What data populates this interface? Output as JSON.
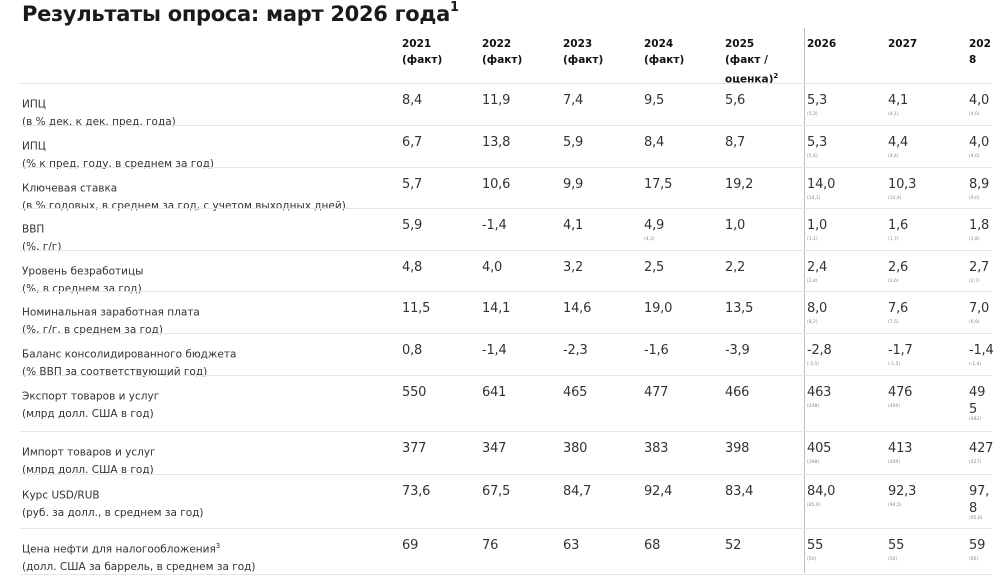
{
  "title": "Результаты опроса: март 2026 года",
  "title_sup": "1",
  "columns": [
    {
      "year": "2021",
      "sub": "(факт)",
      "sub2": "",
      "sup": ""
    },
    {
      "year": "2022",
      "sub": "(факт)",
      "sub2": "",
      "sup": ""
    },
    {
      "year": "2023",
      "sub": "(факт)",
      "sub2": "",
      "sup": ""
    },
    {
      "year": "2024",
      "sub": "(факт)",
      "sub2": "",
      "sup": ""
    },
    {
      "year": "2025",
      "sub": "(факт /",
      "sub2": "оценка)",
      "sup": "2"
    },
    {
      "year": "2026",
      "sub": "",
      "sub2": "",
      "sup": ""
    },
    {
      "year": "2027",
      "sub": "",
      "sub2": "",
      "sup": ""
    },
    {
      "year": "202",
      "sub": "8",
      "sub2": "",
      "sup": ""
    }
  ],
  "rows": [
    {
      "label": "ИПЦ",
      "sublabel": "(в % дек. к дек. пред. года)",
      "sup": "",
      "values": [
        "8,4",
        "11,9",
        "7,4",
        "9,5",
        "5,6",
        "5,3",
        "4,1",
        "4,0"
      ],
      "prev": [
        "",
        "",
        "",
        "",
        "",
        "(5,3)",
        "(4,1)",
        "(4,0)"
      ]
    },
    {
      "label": "ИПЦ",
      "sublabel": "(% к пред. году, в среднем за год)",
      "sup": "",
      "values": [
        "6,7",
        "13,8",
        "5,9",
        "8,4",
        "8,7",
        "5,3",
        "4,4",
        "4,0"
      ],
      "prev": [
        "",
        "",
        "",
        "",
        "",
        "(5,6)",
        "(4,4)",
        "(4,0)"
      ]
    },
    {
      "label": "Ключевая ставка",
      "sublabel": "(в % годовых, в среднем за год, с учетом выходных дней)",
      "sup": "",
      "values": [
        "5,7",
        "10,6",
        "9,9",
        "17,5",
        "19,2",
        "14,0",
        "10,3",
        "8,9"
      ],
      "prev": [
        "",
        "",
        "",
        "",
        "",
        "(14,1)",
        "(10,4)",
        "(9,0)"
      ]
    },
    {
      "label": "ВВП",
      "sublabel": "(%, г/г)",
      "sup": "",
      "values": [
        "5,9",
        "-1,4",
        "4,1",
        "4,9",
        "1,0",
        "1,0",
        "1,6",
        "1,8"
      ],
      "prev": [
        "",
        "",
        "",
        "(4,3)",
        "",
        "(1,1)",
        "(1,7)",
        "(1,8)"
      ]
    },
    {
      "label": "Уровень безработицы",
      "sublabel": "(%, в среднем за год)",
      "sup": "",
      "values": [
        "4,8",
        "4,0",
        "3,2",
        "2,5",
        "2,2",
        "2,4",
        "2,6",
        "2,7"
      ],
      "prev": [
        "",
        "",
        "",
        "",
        "",
        "(2,4)",
        "(2,6)",
        "(2,7)"
      ]
    },
    {
      "label": "Номинальная заработная плата",
      "sublabel": "(%, г/г, в среднем за год)",
      "sup": "",
      "values": [
        "11,5",
        "14,1",
        "14,6",
        "19,0",
        "13,5",
        "8,0",
        "7,6",
        "7,0"
      ],
      "prev": [
        "",
        "",
        "",
        "",
        "",
        "(8,2)",
        "(7,5)",
        "(6,9)"
      ]
    },
    {
      "label": "Баланс консолидированного бюджета",
      "sublabel": "(% ВВП за соответствующий год)",
      "sup": "",
      "values": [
        "0,8",
        "-1,4",
        "-2,3",
        "-1,6",
        "-3,9",
        "-2,8",
        "-1,7",
        "-1,4"
      ],
      "prev": [
        "",
        "",
        "",
        "",
        "",
        "(-2,5)",
        "(-1,5)",
        "(-1,4)"
      ]
    },
    {
      "label": "Экспорт товаров и услуг",
      "sublabel": "(млрд долл. США в год)",
      "sup": "",
      "values": [
        "550",
        "641",
        "465",
        "477",
        "466",
        "463",
        "476",
        "49\n5"
      ],
      "prev": [
        "",
        "",
        "",
        "",
        "",
        "(448)",
        "(460)",
        "(482)"
      ]
    },
    {
      "label": "Импорт товаров и услуг",
      "sublabel": "(млрд долл. США в год)",
      "sup": "",
      "values": [
        "377",
        "347",
        "380",
        "383",
        "398",
        "405",
        "413",
        "427"
      ],
      "prev": [
        "",
        "",
        "",
        "",
        "",
        "(398)",
        "(409)",
        "(427)"
      ]
    },
    {
      "label": "Курс USD/RUB",
      "sublabel": "(руб. за долл., в среднем за год)",
      "sup": "",
      "values": [
        "73,6",
        "67,5",
        "84,7",
        "92,4",
        "83,4",
        "84,0",
        "92,3",
        "97,\n8"
      ],
      "prev": [
        "",
        "",
        "",
        "",
        "",
        "(85,0)",
        "(94,5)",
        "(95,8)"
      ]
    },
    {
      "label": "Цена нефти для налогообложения",
      "sublabel": "(долл. США за баррель, в среднем за год)",
      "sup": "3",
      "values": [
        "69",
        "76",
        "63",
        "68",
        "52",
        "55",
        "55",
        "59"
      ],
      "prev": [
        "",
        "",
        "",
        "",
        "",
        "(50)",
        "(56)",
        "(60)"
      ]
    }
  ]
}
